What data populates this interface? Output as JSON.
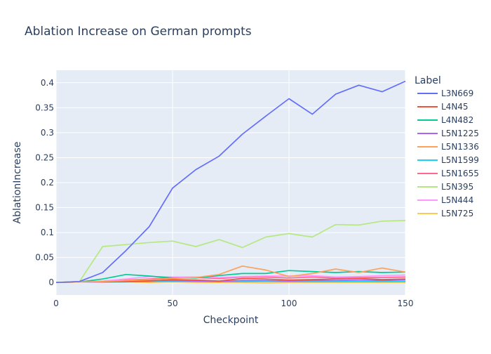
{
  "chart_data": {
    "type": "line",
    "title": "Ablation Increase on German prompts",
    "xlabel": "Checkpoint",
    "ylabel": "AblationIncrease",
    "xlim": [
      0,
      150
    ],
    "ylim": [
      -0.025,
      0.425
    ],
    "x_ticks": [
      "0",
      "50",
      "100",
      "150"
    ],
    "y_ticks": [
      "0",
      "0.05",
      "0.1",
      "0.15",
      "0.2",
      "0.25",
      "0.3",
      "0.35",
      "0.4"
    ],
    "grid": true,
    "legend_title": "Label",
    "legend_position": "right",
    "x": [
      0,
      10,
      20,
      30,
      40,
      50,
      60,
      70,
      80,
      90,
      100,
      110,
      120,
      130,
      140,
      150
    ],
    "series": [
      {
        "name": "L3N669",
        "color": "#636efa",
        "values": [
          0,
          0.002,
          0.02,
          0.064,
          0.112,
          0.189,
          0.226,
          0.253,
          0.297,
          0.333,
          0.368,
          0.337,
          0.377,
          0.395,
          0.382,
          0.403
        ]
      },
      {
        "name": "L4N45",
        "color": "#EF553B",
        "values": [
          0,
          0.002,
          0.001,
          0.002,
          0.003,
          0.006,
          0.005,
          0.003,
          0.008,
          0.007,
          0.005,
          0.006,
          0.007,
          0.008,
          0.006,
          0.007
        ]
      },
      {
        "name": "L4N482",
        "color": "#00cc96",
        "values": [
          0,
          0.001,
          0.007,
          0.016,
          0.013,
          0.009,
          0.009,
          0.014,
          0.018,
          0.018,
          0.024,
          0.022,
          0.02,
          0.022,
          0.02,
          0.021
        ]
      },
      {
        "name": "L5N1225",
        "color": "#ab63fa",
        "values": [
          0,
          0.001,
          0.001,
          0.002,
          0.004,
          0.004,
          0.003,
          0.002,
          0.004,
          0.004,
          0.003,
          0.004,
          0.004,
          0.005,
          0.004,
          0.005
        ]
      },
      {
        "name": "L5N1336",
        "color": "#FFA15A",
        "values": [
          0,
          0.001,
          0.002,
          0.004,
          0.006,
          0.008,
          0.01,
          0.016,
          0.033,
          0.025,
          0.012,
          0.018,
          0.027,
          0.02,
          0.029,
          0.021
        ]
      },
      {
        "name": "L5N1599",
        "color": "#19d3f3",
        "values": [
          0,
          0.001,
          0.001,
          0.001,
          0.002,
          0.002,
          0.002,
          0.002,
          0.002,
          0.002,
          0.002,
          0.002,
          0.002,
          0.002,
          0.002,
          0.002
        ]
      },
      {
        "name": "L5N1655",
        "color": "#FF6692",
        "values": [
          0,
          0.001,
          0.002,
          0.005,
          0.007,
          0.01,
          0.01,
          0.008,
          0.011,
          0.011,
          0.009,
          0.011,
          0.009,
          0.01,
          0.01,
          0.011
        ]
      },
      {
        "name": "L5N395",
        "color": "#B6E880",
        "values": [
          0,
          0.002,
          0.072,
          0.076,
          0.08,
          0.083,
          0.072,
          0.086,
          0.07,
          0.091,
          0.098,
          0.091,
          0.116,
          0.115,
          0.123,
          0.124
        ]
      },
      {
        "name": "L5N444",
        "color": "#FF97FF",
        "values": [
          0,
          0.001,
          0.003,
          0.007,
          0.012,
          0.011,
          0.011,
          0.01,
          0.012,
          0.013,
          0.013,
          0.014,
          0.011,
          0.012,
          0.014,
          0.015
        ]
      },
      {
        "name": "L5N725",
        "color": "#FECB52",
        "values": [
          0,
          0.001,
          0.001,
          0.001,
          0,
          0.001,
          0,
          0,
          0,
          -0.001,
          0,
          0,
          0,
          0,
          0,
          0
        ]
      }
    ]
  }
}
